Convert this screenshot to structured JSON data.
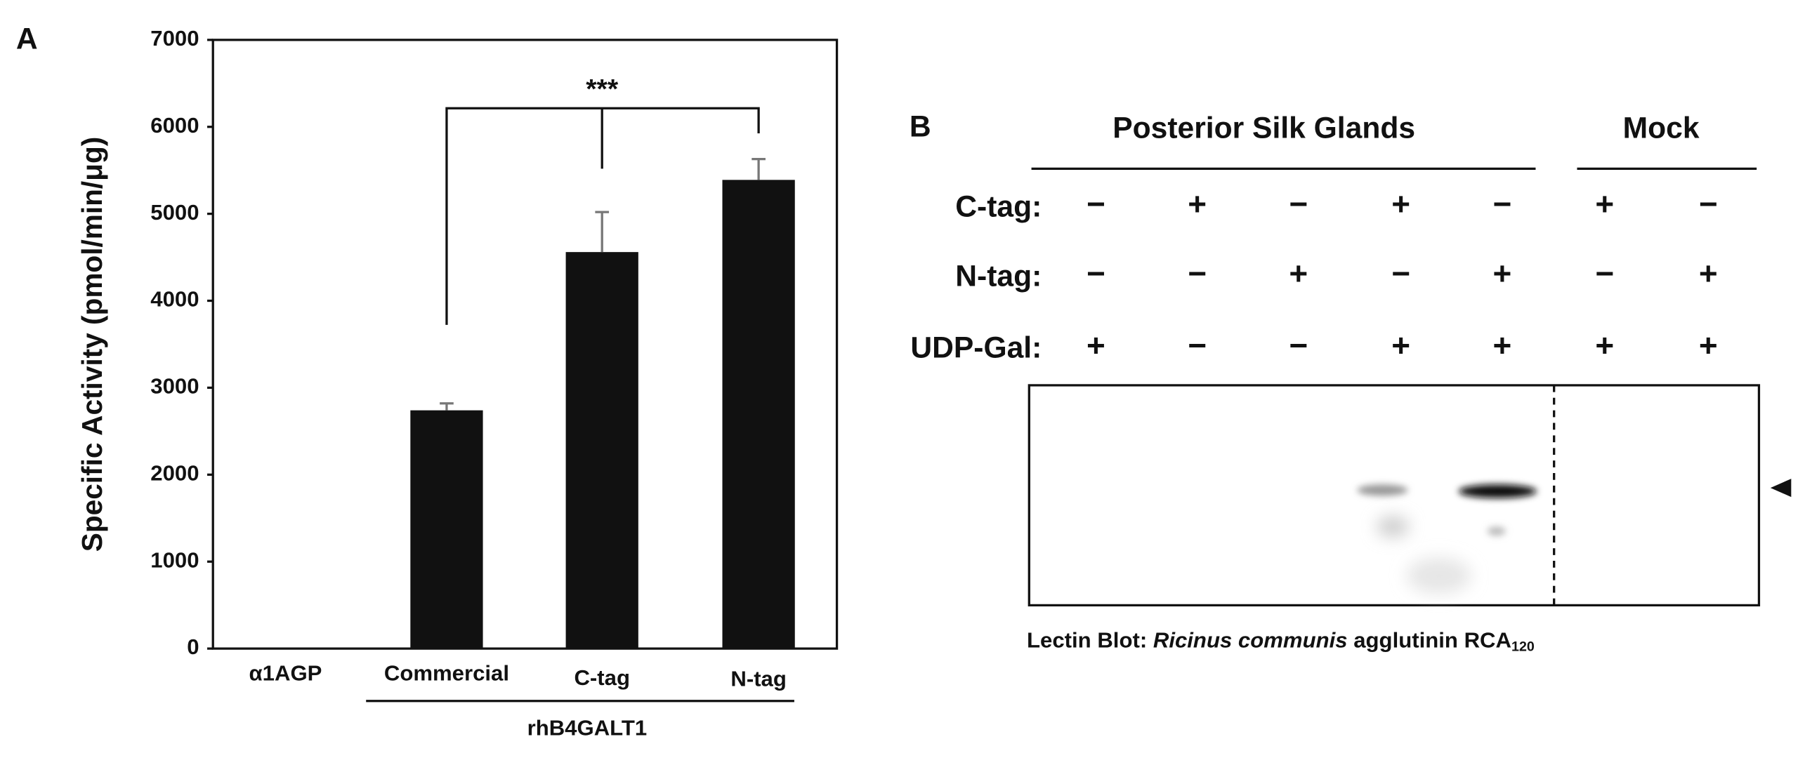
{
  "chart_data": {
    "type": "bar",
    "panel_label": "A",
    "ylabel": "Specific Activity (pmol/min/μg)",
    "categories": [
      "α1AGP",
      "Commercial",
      "C-tag",
      "N-tag"
    ],
    "values": [
      0,
      2740,
      4560,
      5390
    ],
    "errors": [
      null,
      80,
      460,
      240
    ],
    "color": "#111111",
    "ylim": [
      0,
      7000
    ],
    "yticks": [
      0,
      1000,
      2000,
      3000,
      4000,
      5000,
      6000,
      7000
    ],
    "group_label": "rhB4GALT1",
    "annotation": "***"
  },
  "blot": {
    "panel_label": "B",
    "groups": [
      {
        "label": "Posterior Silk Glands"
      },
      {
        "label": "Mock"
      }
    ],
    "rows": [
      {
        "label": "C-tag:",
        "signs": [
          "−",
          "+",
          "−",
          "+",
          "−",
          "+",
          "−"
        ]
      },
      {
        "label": "N-tag:",
        "signs": [
          "−",
          "−",
          "+",
          "−",
          "+",
          "−",
          "+"
        ]
      },
      {
        "label": "UDP-Gal:",
        "signs": [
          "+",
          "−",
          "−",
          "+",
          "+",
          "+",
          "+"
        ]
      }
    ],
    "caption": {
      "prefix": "Lectin Blot: ",
      "species": "Ricinus communis",
      "suffix": " agglutinin RCA",
      "subscript": "120"
    }
  }
}
